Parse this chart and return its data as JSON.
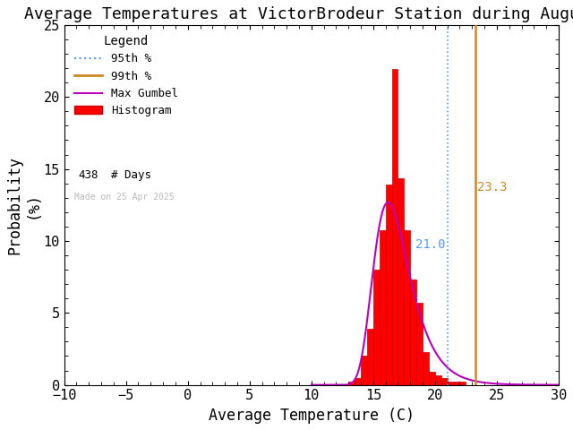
{
  "title": "Average Temperatures at VictorBrodeur Station during August",
  "xlabel": "Average Temperature (C)",
  "ylabel": "Probability\n(%)",
  "xlim": [
    -10,
    30
  ],
  "ylim": [
    0,
    25
  ],
  "n_days": 438,
  "pct_95": 21.0,
  "pct_99": 23.3,
  "bar_color": "#ff0000",
  "bar_edge_color": "#cc0000",
  "gumbel_color": "#bb00bb",
  "pct95_color": "#5599ff",
  "pct99_color": "#cc8822",
  "hist_bin_left": [
    13.0,
    13.5,
    14.0,
    14.5,
    15.0,
    15.5,
    16.0,
    16.5,
    17.0,
    17.5,
    18.0,
    18.5,
    19.0,
    19.5,
    20.0,
    20.5,
    21.0,
    21.5,
    22.0,
    22.5,
    23.0
  ],
  "hist_freqs": [
    0.23,
    0.46,
    2.05,
    3.88,
    7.99,
    10.73,
    13.93,
    21.92,
    14.38,
    10.73,
    7.31,
    5.71,
    2.28,
    0.91,
    0.68,
    0.46,
    0.23,
    0.23,
    0.23,
    0.0,
    0.0
  ],
  "bin_width": 0.5,
  "gumbel_mu": 16.2,
  "gumbel_beta": 1.45,
  "made_on": "Made on 25 Apr 2025",
  "legend_title": "Legend",
  "background_color": "#ffffff",
  "tick_fontsize": 11,
  "label_fontsize": 12,
  "title_fontsize": 13,
  "figwidth": 6.4,
  "figheight": 4.8,
  "dpi": 100
}
